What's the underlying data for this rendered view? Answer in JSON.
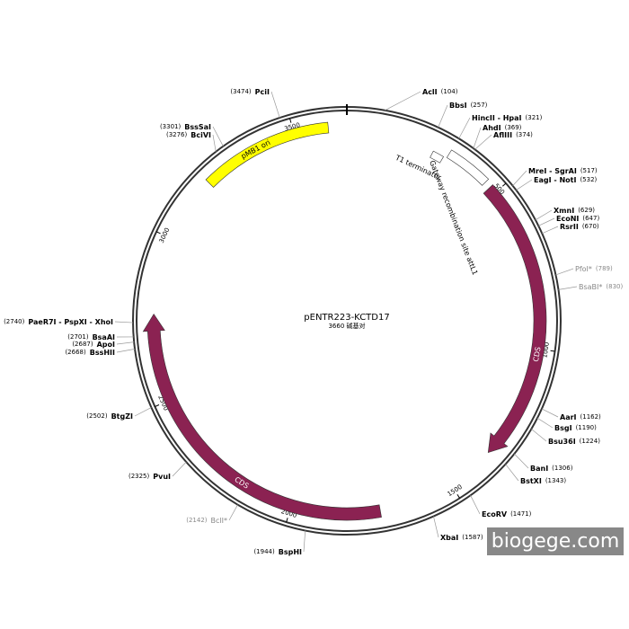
{
  "title": "pENTR223-KCTD17",
  "subtitle": "3660 碱基对",
  "ruler": [
    500,
    1000,
    1500,
    2000,
    2500,
    3000,
    3500
  ],
  "features": [
    {
      "label": "pMB1 ori",
      "color": "#ffff00"
    },
    {
      "label": "T1 terminator",
      "color": "#ffffff"
    },
    {
      "label": "Gateway recombination site attL1",
      "color": "#ffffff"
    },
    {
      "label": "CDS",
      "color": "#8b2252"
    },
    {
      "label": "CDS",
      "color": "#8b2252"
    }
  ],
  "sites": [
    {
      "name": "AclI",
      "position": "(104)",
      "color": "#000"
    },
    {
      "name": "BbsI",
      "position": "(257)",
      "color": "#000"
    },
    {
      "name": "HincII - HpaI",
      "position": "(321)",
      "color": "#000"
    },
    {
      "name": "AhdI",
      "position": "(369)",
      "color": "#000"
    },
    {
      "name": "AflIII",
      "position": "(374)",
      "color": "#000"
    },
    {
      "name": "MreI - SgrAI",
      "position": "(517)",
      "color": "#000"
    },
    {
      "name": "EagI - NotI",
      "position": "(532)",
      "color": "#000"
    },
    {
      "name": "XmnI",
      "position": "(629)",
      "color": "#000"
    },
    {
      "name": "EcoNI",
      "position": "(647)",
      "color": "#000"
    },
    {
      "name": "RsrII",
      "position": "(670)",
      "color": "#000"
    },
    {
      "name": "PfoI*",
      "position": "(789)",
      "color": "#888"
    },
    {
      "name": "BsaBI*",
      "position": "(830)",
      "color": "#888"
    },
    {
      "name": "AarI",
      "position": "(1162)",
      "color": "#000"
    },
    {
      "name": "BsgI",
      "position": "(1190)",
      "color": "#000"
    },
    {
      "name": "Bsu36I",
      "position": "(1224)",
      "color": "#000"
    },
    {
      "name": "BanI",
      "position": "(1306)",
      "color": "#000"
    },
    {
      "name": "BstXI",
      "position": "(1343)",
      "color": "#000"
    },
    {
      "name": "EcoRV",
      "position": "(1471)",
      "color": "#000"
    },
    {
      "name": "XbaI",
      "position": "(1587)",
      "color": "#000"
    },
    {
      "name": "BspHI",
      "position": "(1944)",
      "color": "#000"
    },
    {
      "name": "BclI*",
      "position": "(2142)",
      "color": "#888"
    },
    {
      "name": "PvuI",
      "position": "(2325)",
      "color": "#000"
    },
    {
      "name": "BtgZI",
      "position": "(2502)",
      "color": "#000"
    },
    {
      "name": "BssHII",
      "position": "(2668)",
      "color": "#000"
    },
    {
      "name": "ApoI",
      "position": "(2687)",
      "color": "#000"
    },
    {
      "name": "BsaAI",
      "position": "(2701)",
      "color": "#000"
    },
    {
      "name": "PaeR7I - PspXI - XhoI",
      "position": "(2740)",
      "color": "#000"
    },
    {
      "name": "BciVI",
      "position": "(3276)",
      "color": "#000"
    },
    {
      "name": "BssSaI",
      "position": "(3301)",
      "color": "#000"
    },
    {
      "name": "PciI",
      "position": "(3474)",
      "color": "#000"
    }
  ],
  "watermark": "biogege.com"
}
